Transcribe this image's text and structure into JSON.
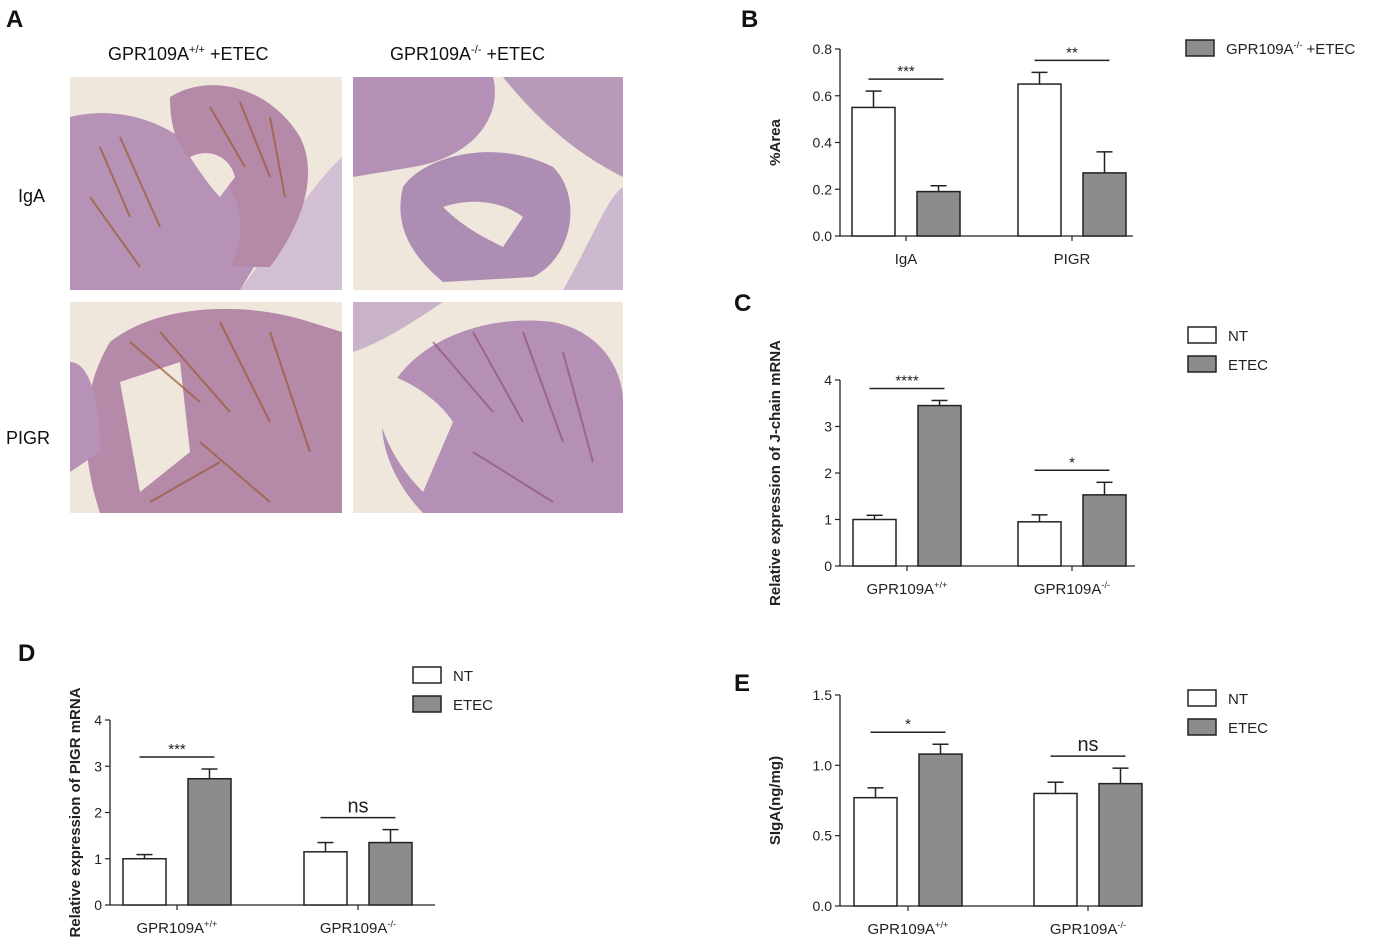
{
  "panel_a": {
    "label": "A",
    "col_titles": [
      {
        "gene": "GPR109A",
        "sup": "+/+",
        "rest": " +ETEC"
      },
      {
        "gene": "GPR109A",
        "sup": "-/-",
        "rest": " +ETEC"
      }
    ],
    "row_labels": [
      "IgA",
      "PIGR"
    ],
    "image_descriptions": [
      "colon section IgA wild type",
      "colon section IgA knockout",
      "colon section PIGR wild type",
      "colon section PIGR knockout"
    ],
    "colors": {
      "tissue": "#b692b6",
      "stain": "#a0682e",
      "background": "#efe6dc",
      "muscle": "#cdb9cf"
    }
  },
  "colors": {
    "nt": "#ffffff",
    "etec": "#8c8c8c",
    "axis": "#222222"
  },
  "chart_data": [
    {
      "panel": "B",
      "type": "bar",
      "categories": [
        "IgA",
        "PIGR"
      ],
      "category_sup": [
        "",
        ""
      ],
      "series": [
        {
          "name": "GPR109A+/+ +ETEC",
          "legend": {
            "gene": "GPR109A",
            "sup": "+/+",
            "rest": " +ETEC"
          },
          "color": "#ffffff",
          "values": [
            0.55,
            0.65
          ],
          "errors": [
            0.07,
            0.05
          ]
        },
        {
          "name": "GPR109A-/- +ETEC",
          "legend": {
            "gene": "GPR109A",
            "sup": "-/-",
            "rest": " +ETEC"
          },
          "color": "#8c8c8c",
          "values": [
            0.19,
            0.27
          ],
          "errors": [
            0.025,
            0.09
          ]
        }
      ],
      "ylabel": "%Area",
      "ylim": [
        0,
        0.8
      ],
      "yticks": [
        "0.0",
        "0.2",
        "0.4",
        "0.6",
        "0.8"
      ],
      "significance": [
        "***",
        "**"
      ],
      "grid": false,
      "legend_position": "top-right"
    },
    {
      "panel": "C",
      "type": "bar",
      "categories": [
        "GPR109A",
        "GPR109A"
      ],
      "category_sup": [
        "+/+",
        "-/-"
      ],
      "series": [
        {
          "name": "NT",
          "legend": {
            "gene": "NT",
            "sup": "",
            "rest": ""
          },
          "color": "#ffffff",
          "values": [
            1.0,
            0.95
          ],
          "errors": [
            0.09,
            0.15
          ]
        },
        {
          "name": "ETEC",
          "legend": {
            "gene": "ETEC",
            "sup": "",
            "rest": ""
          },
          "color": "#8c8c8c",
          "values": [
            3.45,
            1.53
          ],
          "errors": [
            0.11,
            0.27
          ]
        }
      ],
      "ylabel": "Relative expression of J-chain mRNA",
      "ylim": [
        0,
        4
      ],
      "yticks": [
        "0",
        "1",
        "2",
        "3",
        "4"
      ],
      "significance": [
        "****",
        "*"
      ],
      "grid": false,
      "legend_position": "top-right"
    },
    {
      "panel": "D",
      "type": "bar",
      "categories": [
        "GPR109A",
        "GPR109A"
      ],
      "category_sup": [
        "+/+",
        "-/-"
      ],
      "series": [
        {
          "name": "NT",
          "legend": {
            "gene": "NT",
            "sup": "",
            "rest": ""
          },
          "color": "#ffffff",
          "values": [
            1.0,
            1.15
          ],
          "errors": [
            0.09,
            0.2
          ]
        },
        {
          "name": "ETEC",
          "legend": {
            "gene": "ETEC",
            "sup": "",
            "rest": ""
          },
          "color": "#8c8c8c",
          "values": [
            2.73,
            1.35
          ],
          "errors": [
            0.21,
            0.28
          ]
        }
      ],
      "ylabel": "Relative expression of PIGR mRNA",
      "ylim": [
        0,
        4
      ],
      "yticks": [
        "0",
        "1",
        "2",
        "3",
        "4"
      ],
      "significance": [
        "***",
        "ns"
      ],
      "grid": false,
      "legend_position": "top-right"
    },
    {
      "panel": "E",
      "type": "bar",
      "categories": [
        "GPR109A",
        "GPR109A"
      ],
      "category_sup": [
        "+/+",
        "-/-"
      ],
      "series": [
        {
          "name": "NT",
          "legend": {
            "gene": "NT",
            "sup": "",
            "rest": ""
          },
          "color": "#ffffff",
          "values": [
            0.77,
            0.8
          ],
          "errors": [
            0.07,
            0.08
          ]
        },
        {
          "name": "ETEC",
          "legend": {
            "gene": "ETEC",
            "sup": "",
            "rest": ""
          },
          "color": "#8c8c8c",
          "values": [
            1.08,
            0.87
          ],
          "errors": [
            0.07,
            0.11
          ]
        }
      ],
      "ylabel": "SIgA(ng/mg)",
      "ylim": [
        0,
        1.5
      ],
      "yticks": [
        "0.0",
        "0.5",
        "1.0",
        "1.5"
      ],
      "significance": [
        "*",
        "ns"
      ],
      "grid": false,
      "legend_position": "top-right"
    }
  ]
}
